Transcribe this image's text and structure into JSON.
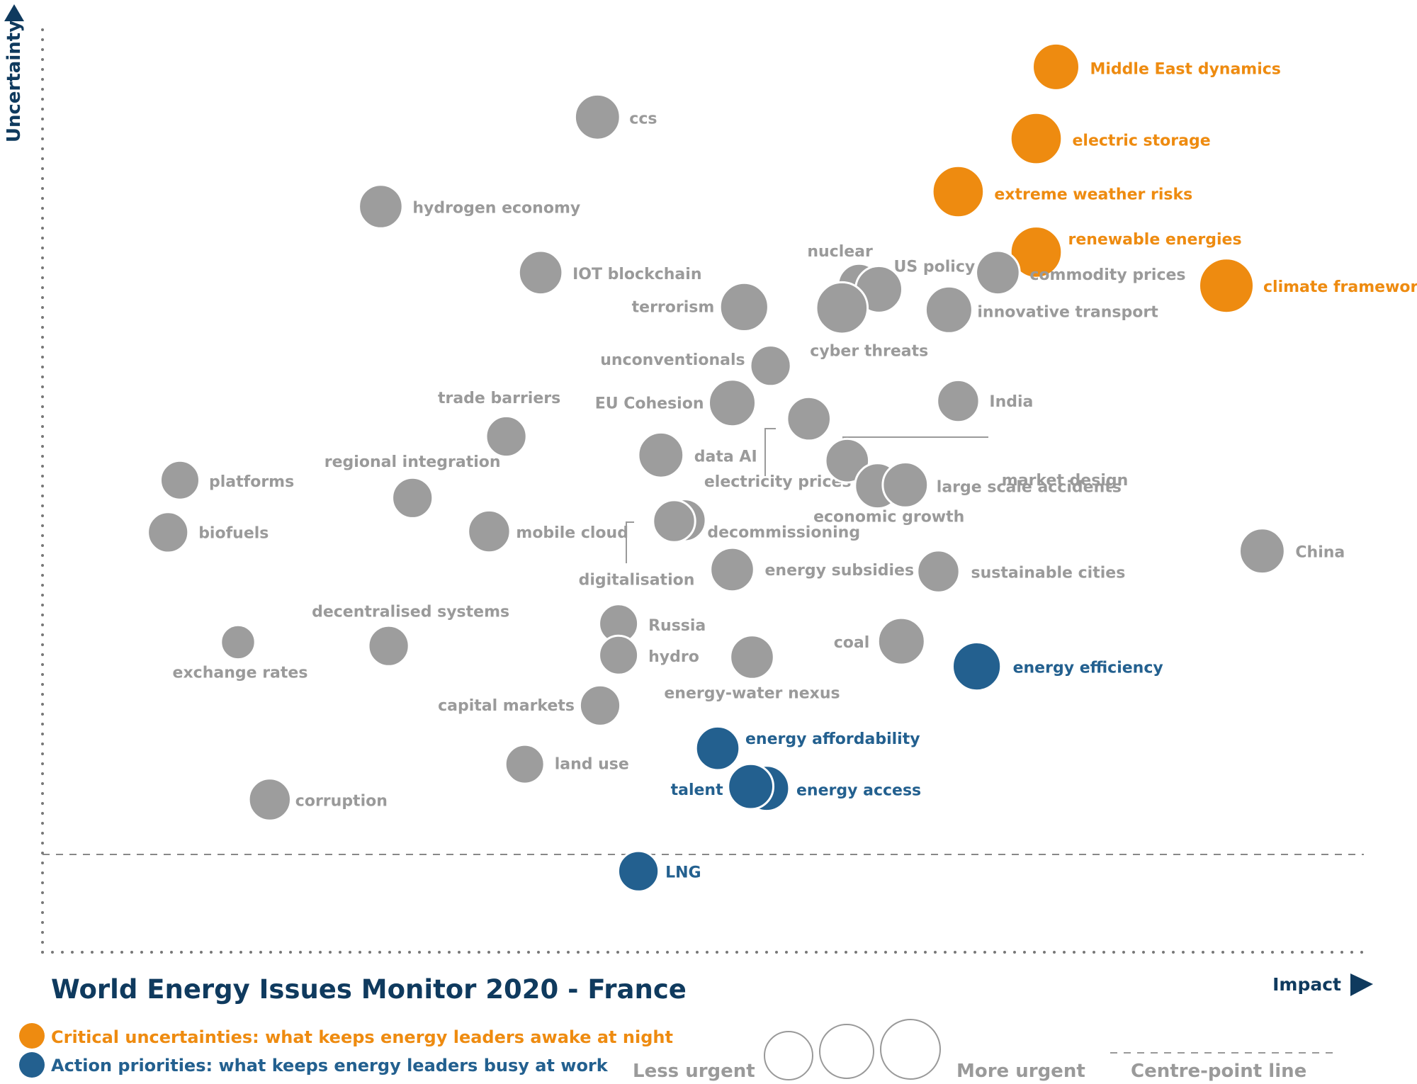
{
  "chart_data": {
    "type": "scatter",
    "title": "World Energy Issues Monitor 2020 - France",
    "xlabel": "Impact",
    "ylabel": "Uncertainty",
    "xlim": [
      0,
      100
    ],
    "ylim": [
      0,
      100
    ],
    "centre_point_y": 10.5,
    "colors": {
      "critical": "#EE8B10",
      "action": "#23608F",
      "neutral": "#9D9D9D",
      "text_grey": "#9A9A9A",
      "navy": "#0F3A5E"
    },
    "points": [
      {
        "label": "Middle East dynamics",
        "x": 76.7,
        "y": 95.1,
        "size": 3.0,
        "category": "critical"
      },
      {
        "label": "electric storage",
        "x": 75.2,
        "y": 87.4,
        "size": 3.3,
        "category": "critical"
      },
      {
        "label": "extreme weather risks",
        "x": 69.3,
        "y": 81.7,
        "size": 3.3,
        "category": "critical"
      },
      {
        "label": "renewable energies",
        "x": 75.2,
        "y": 75.2,
        "size": 3.3,
        "category": "critical"
      },
      {
        "label": "climate framework",
        "x": 89.6,
        "y": 71.6,
        "size": 3.5,
        "category": "critical"
      },
      {
        "label": "ccs",
        "x": 42.0,
        "y": 89.7,
        "size": 2.9,
        "category": "neutral"
      },
      {
        "label": "hydrogen economy",
        "x": 25.6,
        "y": 80.1,
        "size": 2.8,
        "category": "neutral"
      },
      {
        "label": "IOT blockchain",
        "x": 37.7,
        "y": 73.0,
        "size": 2.8,
        "category": "neutral"
      },
      {
        "label": "nuclear",
        "x": 61.8,
        "y": 71.7,
        "size": 2.7,
        "category": "neutral"
      },
      {
        "label": "US policy",
        "x": 63.3,
        "y": 71.2,
        "size": 3.0,
        "category": "neutral"
      },
      {
        "label": "terrorism",
        "x": 53.1,
        "y": 69.3,
        "size": 3.1,
        "category": "neutral"
      },
      {
        "label": "cyber threats",
        "x": 60.5,
        "y": 69.2,
        "size": 3.3,
        "category": "neutral"
      },
      {
        "label": "commodity prices",
        "x": 72.3,
        "y": 73.0,
        "size": 2.8,
        "category": "neutral"
      },
      {
        "label": "innovative transport",
        "x": 68.6,
        "y": 69.0,
        "size": 3.0,
        "category": "neutral"
      },
      {
        "label": "unconventionals",
        "x": 55.1,
        "y": 63.0,
        "size": 2.6,
        "category": "neutral"
      },
      {
        "label": "EU Cohesion",
        "x": 52.2,
        "y": 59.0,
        "size": 3.0,
        "category": "neutral"
      },
      {
        "label": "India",
        "x": 69.3,
        "y": 59.2,
        "size": 2.7,
        "category": "neutral"
      },
      {
        "label": "electricity prices",
        "x": 58.0,
        "y": 57.3,
        "size": 2.8,
        "category": "neutral"
      },
      {
        "label": "market design",
        "x": 60.9,
        "y": 52.8,
        "size": 2.8,
        "category": "neutral"
      },
      {
        "label": "trade barriers",
        "x": 35.1,
        "y": 55.4,
        "size": 2.6,
        "category": "neutral"
      },
      {
        "label": "data AI",
        "x": 46.8,
        "y": 53.4,
        "size": 2.9,
        "category": "neutral"
      },
      {
        "label": "economic growth",
        "x": 63.2,
        "y": 50.1,
        "size": 2.9,
        "category": "neutral"
      },
      {
        "label": "large scale accidents",
        "x": 65.3,
        "y": 50.2,
        "size": 2.9,
        "category": "neutral"
      },
      {
        "label": "platforms",
        "x": 10.4,
        "y": 50.7,
        "size": 2.5,
        "category": "neutral"
      },
      {
        "label": "regional integration",
        "x": 28.0,
        "y": 48.8,
        "size": 2.6,
        "category": "neutral"
      },
      {
        "label": "biofuels",
        "x": 9.5,
        "y": 45.1,
        "size": 2.6,
        "category": "neutral"
      },
      {
        "label": "mobile cloud",
        "x": 33.8,
        "y": 45.2,
        "size": 2.7,
        "category": "neutral"
      },
      {
        "label": "decommissioning",
        "x": 48.6,
        "y": 46.4,
        "size": 2.7,
        "category": "neutral"
      },
      {
        "label": "digitalisation",
        "x": 47.8,
        "y": 46.3,
        "size": 2.7,
        "category": "neutral"
      },
      {
        "label": "China",
        "x": 92.3,
        "y": 43.1,
        "size": 2.9,
        "category": "neutral"
      },
      {
        "label": "energy subsidies",
        "x": 52.2,
        "y": 41.1,
        "size": 2.8,
        "category": "neutral"
      },
      {
        "label": "sustainable cities",
        "x": 67.8,
        "y": 40.9,
        "size": 2.7,
        "category": "neutral"
      },
      {
        "label": "Russia",
        "x": 43.6,
        "y": 35.3,
        "size": 2.5,
        "category": "neutral"
      },
      {
        "label": "hydro",
        "x": 43.6,
        "y": 31.9,
        "size": 2.5,
        "category": "neutral"
      },
      {
        "label": "exchange rates",
        "x": 14.8,
        "y": 33.3,
        "size": 2.2,
        "category": "neutral"
      },
      {
        "label": "decentralised systems",
        "x": 26.2,
        "y": 32.9,
        "size": 2.6,
        "category": "neutral"
      },
      {
        "label": "coal",
        "x": 65.0,
        "y": 33.4,
        "size": 3.0,
        "category": "neutral"
      },
      {
        "label": "energy-water nexus",
        "x": 53.7,
        "y": 31.7,
        "size": 2.8,
        "category": "neutral"
      },
      {
        "label": "capital markets",
        "x": 42.2,
        "y": 26.5,
        "size": 2.6,
        "category": "neutral"
      },
      {
        "label": "land use",
        "x": 36.5,
        "y": 20.2,
        "size": 2.5,
        "category": "neutral"
      },
      {
        "label": "corruption",
        "x": 17.2,
        "y": 16.4,
        "size": 2.7,
        "category": "neutral"
      },
      {
        "label": "energy efficiency",
        "x": 70.7,
        "y": 30.7,
        "size": 3.1,
        "category": "action"
      },
      {
        "label": "energy affordability",
        "x": 51.1,
        "y": 21.9,
        "size": 2.8,
        "category": "action"
      },
      {
        "label": "energy access",
        "x": 54.8,
        "y": 17.6,
        "size": 2.9,
        "category": "action"
      },
      {
        "label": "talent",
        "x": 53.6,
        "y": 17.8,
        "size": 2.9,
        "category": "action"
      },
      {
        "label": "LNG",
        "x": 45.1,
        "y": 8.7,
        "size": 2.6,
        "category": "action"
      }
    ]
  },
  "legend": {
    "critical": "Critical uncertainties: what keeps energy leaders awake at night",
    "action": "Action priorities: what keeps energy leaders busy at work",
    "less_urgent": "Less urgent",
    "more_urgent": "More urgent",
    "centre_point": "Centre-point  line"
  }
}
